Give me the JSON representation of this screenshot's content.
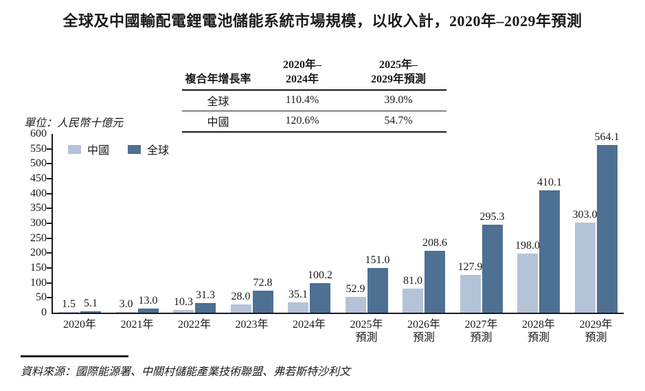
{
  "title": "全球及中國輸配電鋰電池儲能系統市場規模，以收入計，2020年–2029年預測",
  "unit_label": "單位：人民幣十億元",
  "source": "資料來源：國際能源署、中關村儲能產業技術聯盟、弗若斯特沙利文",
  "cagr_table": {
    "metric_header": "複合年增長率",
    "period1_line1": "2020年–",
    "period1_line2": "2024年",
    "period2_line1": "2025年–",
    "period2_line2": "2029年預測",
    "rows": [
      {
        "label": "全球",
        "period1": "110.4%",
        "period2": "39.0%"
      },
      {
        "label": "中國",
        "period1": "120.6%",
        "period2": "54.7%"
      }
    ]
  },
  "chart_data": {
    "type": "bar",
    "title": "全球及中國輸配電鋰電池儲能系統市場規模，以收入計，2020年–2029年預測",
    "ylabel": "人民幣十億元",
    "xlabel": "",
    "ylim": [
      0,
      600
    ],
    "yticks": [
      0,
      50,
      100,
      150,
      200,
      250,
      300,
      350,
      400,
      450,
      500,
      550,
      600
    ],
    "grid": false,
    "legend_position": "top-left-inside",
    "categories": [
      {
        "line1": "2020年",
        "line2": ""
      },
      {
        "line1": "2021年",
        "line2": ""
      },
      {
        "line1": "2022年",
        "line2": ""
      },
      {
        "line1": "2023年",
        "line2": ""
      },
      {
        "line1": "2024年",
        "line2": ""
      },
      {
        "line1": "2025年",
        "line2": "預測"
      },
      {
        "line1": "2026年",
        "line2": "預測"
      },
      {
        "line1": "2027年",
        "line2": "預測"
      },
      {
        "line1": "2028年",
        "line2": "預測"
      },
      {
        "line1": "2029年",
        "line2": "預測"
      }
    ],
    "series": [
      {
        "name": "中國",
        "color": "#b5c3d8",
        "values": [
          1.5,
          3.0,
          10.3,
          28.0,
          35.1,
          52.9,
          81.0,
          127.9,
          198.0,
          303.0
        ]
      },
      {
        "name": "全球",
        "color": "#4d7093",
        "values": [
          5.1,
          13.0,
          31.3,
          72.8,
          100.2,
          151.0,
          208.6,
          295.3,
          410.1,
          564.1
        ]
      }
    ]
  }
}
